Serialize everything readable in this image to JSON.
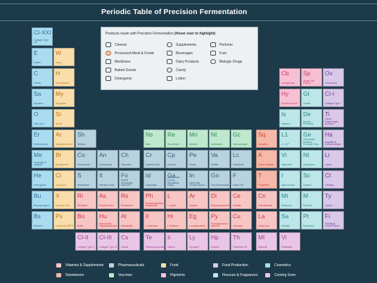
{
  "title": "Periodic Table of Precision Fermentation",
  "info": {
    "heading": "Products made with Precision Fermentation",
    "hint": "(Hover over to highlight)",
    "products": [
      {
        "label": "Cheese",
        "icon": "cheese-icon"
      },
      {
        "label": "Processed Meat & Foods",
        "icon": "meat-icon"
      },
      {
        "label": "Medicines",
        "icon": "medicine-icon"
      },
      {
        "label": "Baked Goods",
        "icon": "bread-icon"
      },
      {
        "label": "Detergents",
        "icon": "detergent-icon"
      },
      {
        "label": "Supplements",
        "icon": "supplement-icon"
      },
      {
        "label": "Beverages",
        "icon": "beverage-icon"
      },
      {
        "label": "Dairy Products",
        "icon": "dairy-icon"
      },
      {
        "label": "Candy",
        "icon": "candy-icon"
      },
      {
        "label": "Lotion",
        "icon": "lotion-icon"
      },
      {
        "label": "Perfume",
        "icon": "perfume-icon"
      },
      {
        "label": "Fuel",
        "icon": "fuel-icon"
      },
      {
        "label": "Biologic Drugs",
        "icon": "biologic-icon"
      }
    ]
  },
  "legend": [
    {
      "label": "Vitamins & Supplements",
      "color": "#f7c6c4"
    },
    {
      "label": "Pharmaceuticals",
      "color": "#b9d2e0"
    },
    {
      "label": "Food",
      "color": "#f9deab"
    },
    {
      "label": "Food Production",
      "color": "#d9c8e8"
    },
    {
      "label": "Cosmetics",
      "color": "#aadcf0"
    },
    {
      "label": "Sweeteners",
      "color": "#f6b8a8"
    },
    {
      "label": "Vaccines",
      "color": "#bfe8cf"
    },
    {
      "label": "Pigments",
      "color": "#f7c0d2"
    },
    {
      "label": "Flavours & Fragrances",
      "color": "#bde6e8"
    },
    {
      "label": "Coming Soon",
      "color": "#eac6e6"
    }
  ],
  "elements": [
    {
      "sym": "Cl-XXI",
      "name": "Collagen Type XXI"
    },
    {
      "sym": "E",
      "name": "Elastin"
    },
    {
      "sym": "W",
      "name": "Whey"
    },
    {
      "sym": "C",
      "name": "Casein"
    },
    {
      "sym": "H",
      "name": "Haemoglobin"
    },
    {
      "sym": "Cb",
      "name": "Carrageenan"
    },
    {
      "sym": "Sp",
      "name": "Spider Silk Protein"
    },
    {
      "sym": "Ov",
      "name": "Ovomucoid"
    },
    {
      "sym": "Sa",
      "name": "Squalene"
    },
    {
      "sym": "My",
      "name": "Myoglobin"
    },
    {
      "sym": "Hy",
      "name": "Hyaluronic Acid"
    },
    {
      "sym": "Gt",
      "name": "Gelatin"
    },
    {
      "sym": "Cl-I",
      "name": "Collagen Type I"
    },
    {
      "sym": "O",
      "name": "Oleic Acid"
    },
    {
      "sym": "Sr",
      "name": "Stevia"
    },
    {
      "sym": "Is",
      "name": "Isoprene"
    },
    {
      "sym": "De",
      "name": "Dermal Fibroblast"
    },
    {
      "sym": "Ti",
      "name": "Tissue Plasminogen Activator"
    },
    {
      "sym": "Er",
      "name": "Erythropoietin"
    },
    {
      "sym": "Ar",
      "name": "Arachidonic Acid"
    },
    {
      "sym": "Sh",
      "name": "Shikimic"
    },
    {
      "sym": "Ns",
      "name": "Nisin"
    },
    {
      "sym": "Re",
      "name": "Resveratrol"
    },
    {
      "sym": "Mn",
      "name": "Menthol"
    },
    {
      "sym": "Nt",
      "name": "Nootkatone"
    },
    {
      "sym": "Gc",
      "name": "Glucoamylase"
    },
    {
      "sym": "Sq",
      "name": "Squalene"
    },
    {
      "sym": "L1",
      "name": "L1 VLP"
    },
    {
      "sym": "Ge",
      "name": "Genetically Modified Pertussis Toxin"
    },
    {
      "sym": "Ha",
      "name": "Hepatitis B Surface Antigen"
    },
    {
      "sym": "Me",
      "name": "Meningitis B antigens"
    },
    {
      "sym": "Br",
      "name": "Biopigments"
    },
    {
      "sym": "Co",
      "name": "Carotenoids"
    },
    {
      "sym": "An",
      "name": "Anthocyanin"
    },
    {
      "sym": "Ch",
      "name": "Chymosin"
    },
    {
      "sym": "Cr",
      "name": "Carmine Acid"
    },
    {
      "sym": "Cp",
      "name": "Ciprocin"
    },
    {
      "sym": "Pe",
      "name": "Pepsin"
    },
    {
      "sym": "Va",
      "name": "Vanillin"
    },
    {
      "sym": "Lc",
      "name": "Lactoferrin"
    },
    {
      "sym": "A",
      "name": "Alpha-Amylase"
    },
    {
      "sym": "Vi",
      "name": "Valencene"
    },
    {
      "sym": "Nt",
      "name": "Nootkatone"
    },
    {
      "sym": "Li",
      "name": "Lipase"
    },
    {
      "sym": "He",
      "name": "Hemoglobin"
    },
    {
      "sym": "Ci",
      "name": "Citric Acid"
    },
    {
      "sym": "S",
      "name": "Somatropin"
    },
    {
      "sym": "It",
      "name": "Interferon beta"
    },
    {
      "sym": "Fo",
      "name": "Follicle Stimulating Hormone"
    },
    {
      "sym": "Id",
      "name": "Idursulfase"
    },
    {
      "sym": "Ga",
      "name": "Granulocyte Colony Stimulating Factor"
    },
    {
      "sym": "In",
      "name": "Insulin like Growth Factor 1"
    },
    {
      "sym": "Go",
      "name": "Glucocerebrosidase"
    },
    {
      "sym": "F",
      "name": "Factor VIII"
    },
    {
      "sym": "T",
      "name": "Thaumatin"
    },
    {
      "sym": "I",
      "name": "alpha-ionone"
    },
    {
      "sym": "Sc",
      "name": "Sclareol"
    },
    {
      "sym": "Ct",
      "name": "Catalase"
    },
    {
      "sym": "Bu",
      "name": "Butyrate-glycol"
    },
    {
      "sym": "X",
      "name": "Xanthan Gum"
    },
    {
      "sym": "Ri",
      "name": "Riboflavin"
    },
    {
      "sym": "As",
      "name": "Ascorbic Acid"
    },
    {
      "sym": "Rs",
      "name": "Resveratrol"
    },
    {
      "sym": "Ph",
      "name": "Phosphatidylserine Butyramide"
    },
    {
      "sym": "L",
      "name": "L-Lysine"
    },
    {
      "sym": "Ar",
      "name": "Arginine"
    },
    {
      "sym": "Di",
      "name": "Dihydroguanosine"
    },
    {
      "sym": "Ce",
      "name": "Ceteline"
    },
    {
      "sym": "Cn",
      "name": "Cannabinoids"
    },
    {
      "sym": "Mt",
      "name": "Menthone"
    },
    {
      "sym": "M",
      "name": "Mannitol"
    },
    {
      "sym": "Ty",
      "name": "Trypsin"
    },
    {
      "sym": "Bs",
      "name": "Brazzein"
    },
    {
      "sym": "Ps",
      "name": "Lactoferrin ABTS"
    },
    {
      "sym": "Bo",
      "name": "Biotin"
    },
    {
      "sym": "Hu",
      "name": "Human Milk Oligosaccharides"
    },
    {
      "sym": "At",
      "name": "Astaxanthin"
    },
    {
      "sym": "Il",
      "name": "L-Isoleucine"
    },
    {
      "sym": "Hi",
      "name": "L-Histidine"
    },
    {
      "sym": "Eg",
      "name": "L-ergothioneine"
    },
    {
      "sym": "Py",
      "name": "Pyrroloquinoline quinone"
    },
    {
      "sym": "Cu",
      "name": "Curcumin"
    },
    {
      "sym": "La",
      "name": "Lactic Acid"
    },
    {
      "sym": "Sa",
      "name": "Santalol"
    },
    {
      "sym": "Pt",
      "name": "Patchoulol"
    },
    {
      "sym": "Fi",
      "name": "Fibroblast Growth Factor"
    },
    {
      "sym": "Cl-II",
      "name": "Collagen Type II"
    },
    {
      "sym": "Cl-III",
      "name": "Collagen Type III"
    },
    {
      "sym": "Cs",
      "name": "Casein"
    },
    {
      "sym": "Te",
      "name": "Tetrahydrocannabinol"
    },
    {
      "sym": "Ii",
      "name": "Indican"
    },
    {
      "sym": "Ly",
      "name": "Lycopene"
    },
    {
      "sym": "Hp",
      "name": "Heparin"
    },
    {
      "sym": "Th",
      "name": "Thaumatin Sil"
    },
    {
      "sym": "Ml",
      "name": "Miraculin"
    },
    {
      "sym": "Vi",
      "name": "Vinblastine"
    }
  ]
}
